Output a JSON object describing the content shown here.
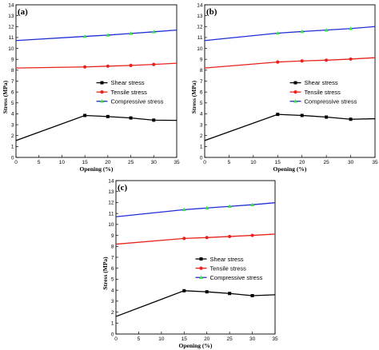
{
  "chart_data": [
    {
      "type": "line",
      "panel_label": "(a)",
      "xlabel": "Opening (%)",
      "ylabel": "Stress (MPa)",
      "xlim": [
        0,
        35
      ],
      "ylim": [
        0,
        14
      ],
      "x_ticks": [
        "0",
        "5",
        "10",
        "15",
        "20",
        "25",
        "30",
        "35"
      ],
      "y_ticks": [
        "0",
        "1",
        "2",
        "3",
        "4",
        "5",
        "6",
        "7",
        "8",
        "9",
        "10",
        "11",
        "12",
        "13",
        "14"
      ],
      "legend_position": "center-right",
      "x": [
        0,
        15,
        20,
        25,
        30,
        35
      ],
      "series": [
        {
          "name": "Shear stress",
          "color": "#000000",
          "marker": "square",
          "values": [
            1.55,
            3.85,
            3.75,
            3.62,
            3.42,
            3.4
          ]
        },
        {
          "name": "Tensile stress",
          "color": "#e8231c",
          "marker": "circle",
          "values": [
            8.2,
            8.3,
            8.37,
            8.44,
            8.53,
            8.64
          ]
        },
        {
          "name": "Compressive stress",
          "color": "#1f2ed6",
          "marker": "triangle",
          "values": [
            10.72,
            11.1,
            11.22,
            11.37,
            11.52,
            11.68
          ]
        }
      ]
    },
    {
      "type": "line",
      "panel_label": "(b)",
      "xlabel": "Opening (%)",
      "ylabel": "Stress (MPa)",
      "xlim": [
        0,
        35
      ],
      "ylim": [
        0,
        14
      ],
      "x_ticks": [
        "0",
        "5",
        "10",
        "15",
        "20",
        "25",
        "30",
        "35"
      ],
      "y_ticks": [
        "0",
        "1",
        "2",
        "3",
        "4",
        "5",
        "6",
        "7",
        "8",
        "9",
        "10",
        "11",
        "12",
        "13",
        "14"
      ],
      "legend_position": "center-right",
      "x": [
        0,
        15,
        20,
        25,
        30,
        35
      ],
      "series": [
        {
          "name": "Shear stress",
          "color": "#000000",
          "marker": "square",
          "values": [
            1.55,
            3.95,
            3.85,
            3.7,
            3.5,
            3.55
          ]
        },
        {
          "name": "Tensile stress",
          "color": "#e8231c",
          "marker": "circle",
          "values": [
            8.2,
            8.75,
            8.85,
            8.92,
            9.02,
            9.15
          ]
        },
        {
          "name": "Compressive stress",
          "color": "#1f2ed6",
          "marker": "triangle",
          "values": [
            10.72,
            11.4,
            11.55,
            11.68,
            11.82,
            12.0
          ]
        }
      ]
    },
    {
      "type": "line",
      "panel_label": "(c)",
      "xlabel": "Opening (%)",
      "ylabel": "Stress (MPa)",
      "xlim": [
        0,
        35
      ],
      "ylim": [
        0,
        14
      ],
      "x_ticks": [
        "0",
        "5",
        "10",
        "15",
        "20",
        "25",
        "30",
        "35"
      ],
      "y_ticks": [
        "0",
        "1",
        "2",
        "3",
        "4",
        "5",
        "6",
        "7",
        "8",
        "9",
        "10",
        "11",
        "12",
        "13",
        "14"
      ],
      "legend_position": "center-right",
      "x": [
        0,
        15,
        20,
        25,
        30,
        35
      ],
      "series": [
        {
          "name": "Shear stress",
          "color": "#000000",
          "marker": "square",
          "values": [
            1.6,
            3.95,
            3.85,
            3.7,
            3.5,
            3.58
          ]
        },
        {
          "name": "Tensile stress",
          "color": "#e8231c",
          "marker": "circle",
          "values": [
            8.2,
            8.72,
            8.8,
            8.9,
            9.0,
            9.12
          ]
        },
        {
          "name": "Compressive stress",
          "color": "#1f2ed6",
          "marker": "triangle",
          "values": [
            10.7,
            11.35,
            11.5,
            11.65,
            11.8,
            11.98
          ]
        }
      ]
    }
  ]
}
